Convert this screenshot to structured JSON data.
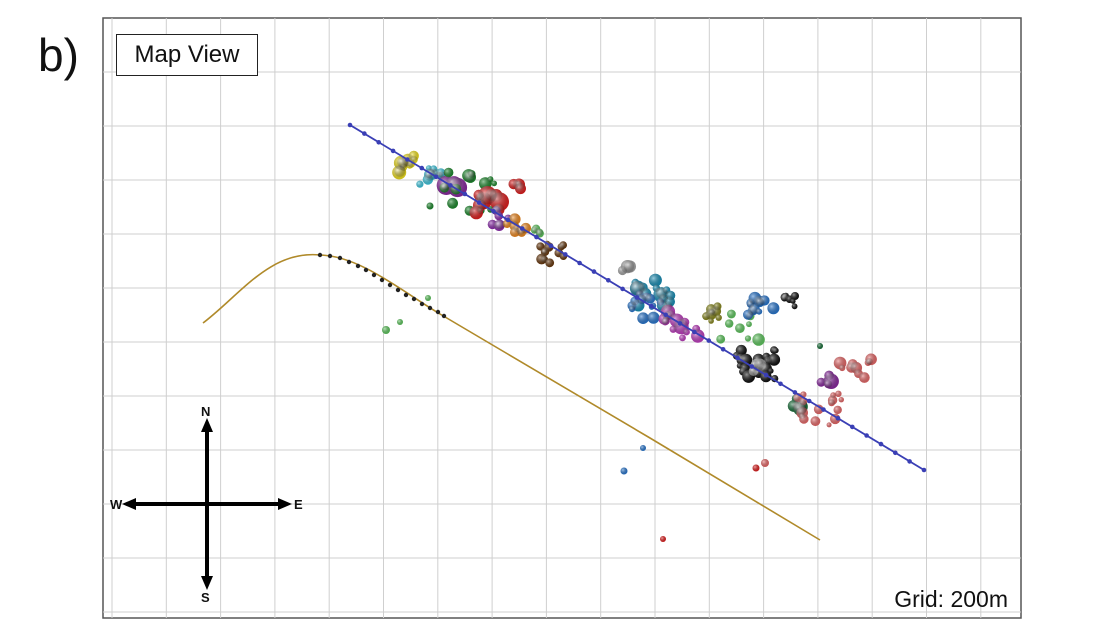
{
  "panel_label": "b)",
  "title": "Map View",
  "grid_label": "Grid: 200m",
  "compass": {
    "n": "N",
    "s": "S",
    "e": "E",
    "w": "W"
  },
  "colors": {
    "grid": "#cfcfcf",
    "frame": "#555555",
    "monitor_well": "#3a3fb5",
    "treatment_well": "#b08a2a",
    "stage_dots": "#222222"
  }
}
